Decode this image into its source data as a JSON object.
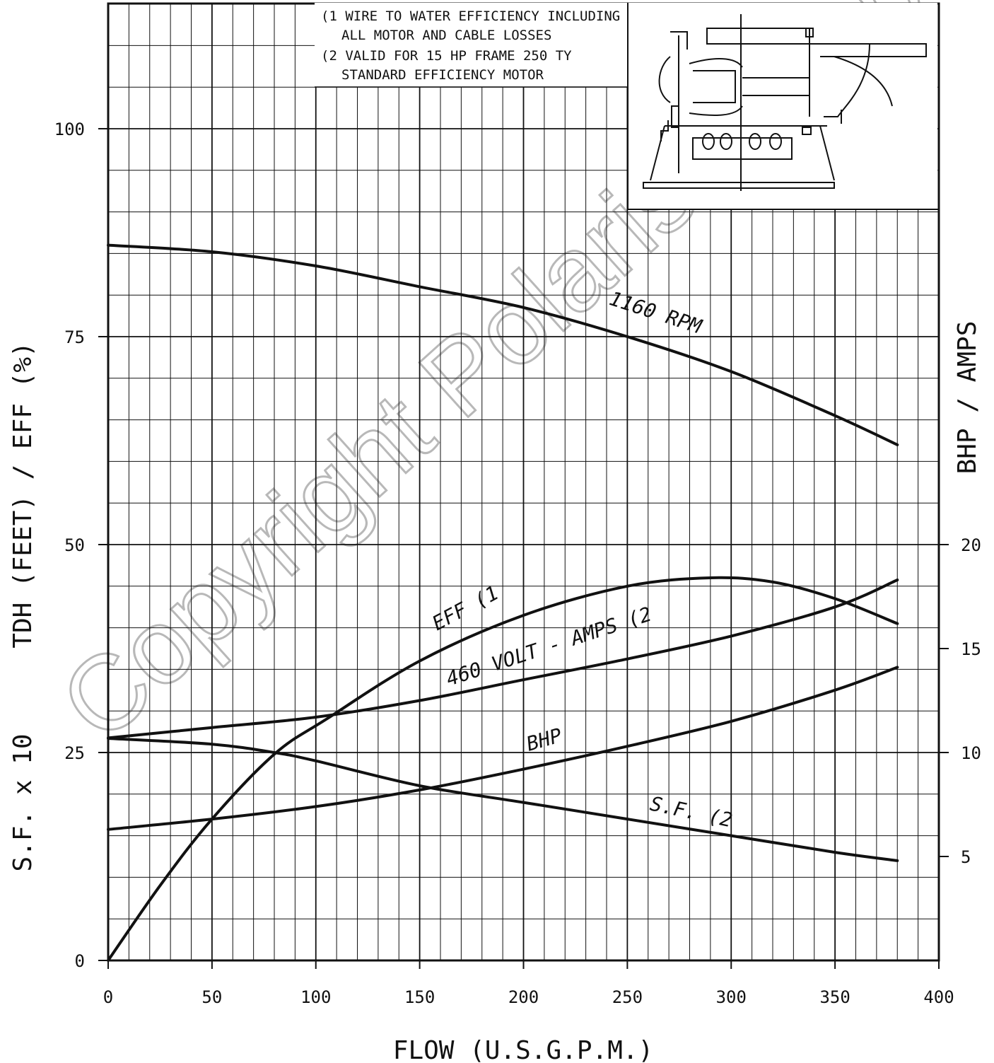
{
  "chart_data": {
    "type": "line",
    "xlabel": "FLOW  (U.S.G.P.M.)",
    "ylabel_left": "S.F. x 10     TDH (FEET) / EFF (%)",
    "ylabel_left_parts": [
      "S.F. x 10",
      "TDH (FEET) / EFF (%)"
    ],
    "ylabel_right": "BHP / AMPS",
    "xlim": [
      0,
      400
    ],
    "ylim_left": [
      0,
      100
    ],
    "ylim_right": [
      0,
      40
    ],
    "x_ticks": [
      "0",
      "50",
      "100",
      "150",
      "200",
      "250",
      "300",
      "350",
      "400"
    ],
    "y_left_ticks": [
      "0",
      "25",
      "50",
      "75",
      "100"
    ],
    "y_right_ticks": [
      "5",
      "10",
      "15",
      "20"
    ],
    "grid": true,
    "notes": [
      "(1 WIRE TO WATER EFFICIENCY INCLUDING",
      "ALL MOTOR AND CABLE LOSSES",
      "(2 VALID FOR 15 HP FRAME 250 TY",
      "STANDARD EFFICIENCY MOTOR"
    ],
    "watermark": "Copyright Polaris Pumps LLC",
    "series": [
      {
        "name": "1160 RPM",
        "axis": "left",
        "points": [
          [
            0,
            86
          ],
          [
            50,
            85.2
          ],
          [
            100,
            83.5
          ],
          [
            150,
            81
          ],
          [
            200,
            78.5
          ],
          [
            250,
            75
          ],
          [
            300,
            70.8
          ],
          [
            350,
            65.5
          ],
          [
            380,
            62
          ]
        ]
      },
      {
        "name": "EFF (1",
        "axis": "left",
        "points": [
          [
            0,
            0
          ],
          [
            25,
            9
          ],
          [
            50,
            17
          ],
          [
            80,
            24.8
          ],
          [
            105,
            29
          ],
          [
            150,
            36
          ],
          [
            200,
            41.5
          ],
          [
            250,
            45
          ],
          [
            290,
            46
          ],
          [
            320,
            45.5
          ],
          [
            350,
            43.5
          ],
          [
            380,
            40.5
          ]
        ]
      },
      {
        "name": "460 VOLT - AMPS (2",
        "axis": "right",
        "points": [
          [
            0,
            10.7
          ],
          [
            50,
            11.2
          ],
          [
            100,
            11.7
          ],
          [
            150,
            12.5
          ],
          [
            200,
            13.5
          ],
          [
            250,
            14.5
          ],
          [
            300,
            15.6
          ],
          [
            350,
            17
          ],
          [
            380,
            18.3
          ]
        ]
      },
      {
        "name": "BHP",
        "axis": "right",
        "points": [
          [
            0,
            6.3
          ],
          [
            50,
            6.8
          ],
          [
            100,
            7.4
          ],
          [
            150,
            8.2
          ],
          [
            200,
            9.2
          ],
          [
            250,
            10.3
          ],
          [
            300,
            11.5
          ],
          [
            350,
            13
          ],
          [
            380,
            14.1
          ]
        ]
      },
      {
        "name": "S.F. (2",
        "axis": "left",
        "points": [
          [
            0,
            26.7
          ],
          [
            50,
            26
          ],
          [
            80,
            25
          ],
          [
            100,
            24
          ],
          [
            150,
            21
          ],
          [
            200,
            19
          ],
          [
            250,
            17
          ],
          [
            300,
            15
          ],
          [
            350,
            13
          ],
          [
            380,
            12
          ]
        ]
      }
    ]
  }
}
